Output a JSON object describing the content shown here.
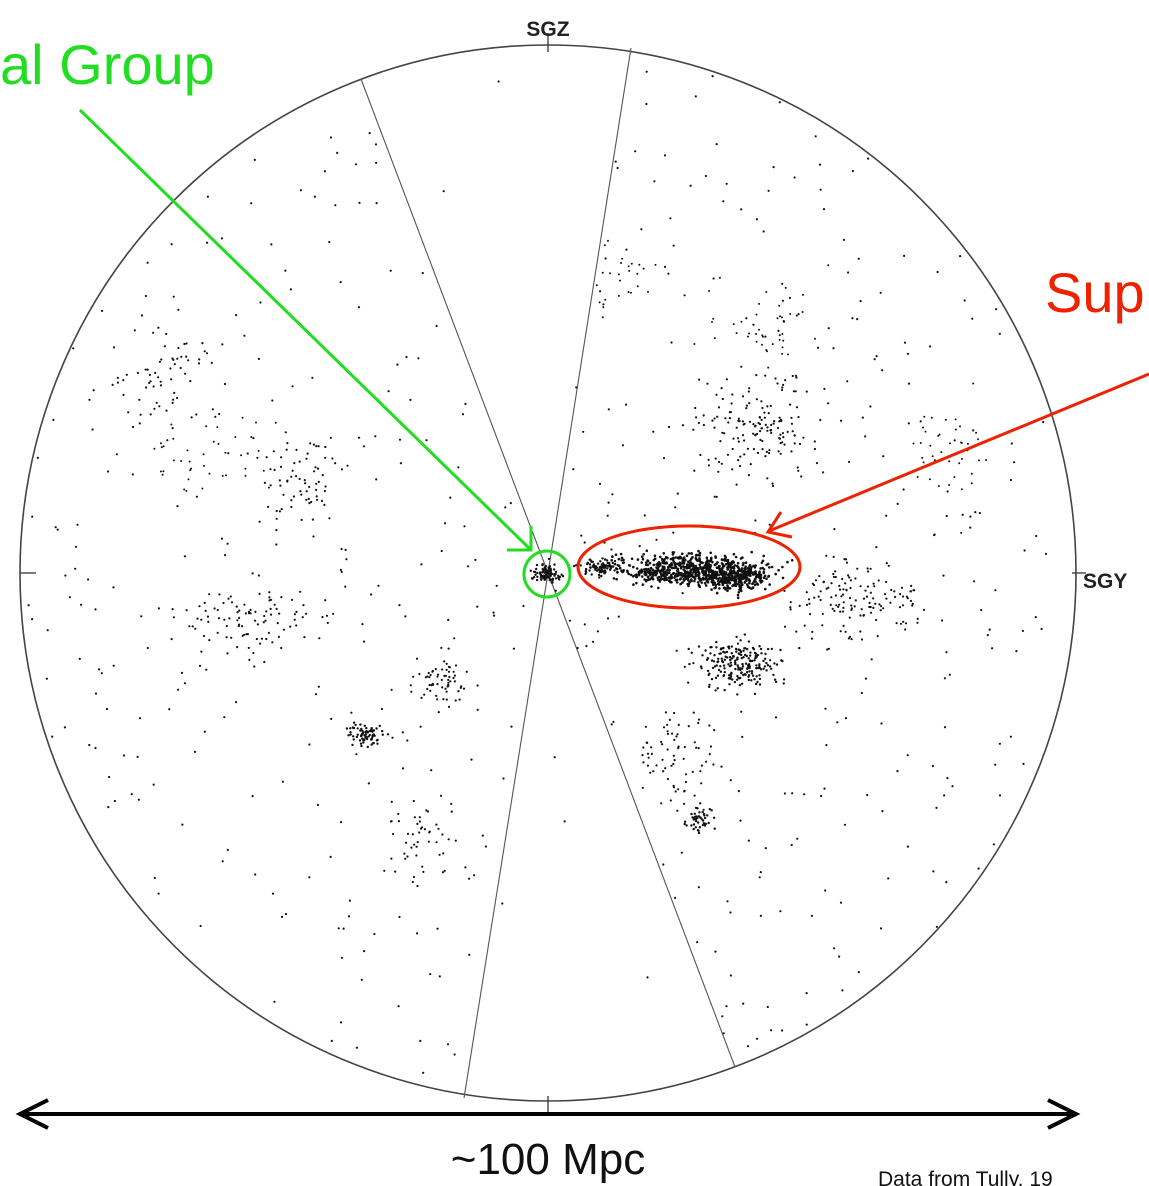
{
  "axes": {
    "top_label": "SGZ",
    "right_label": "SGY"
  },
  "annotations": {
    "local_group": {
      "text": "al Group",
      "color": "#22dd22"
    },
    "supercluster": {
      "text": "Sup",
      "color": "#ee2200"
    }
  },
  "scale_bar": {
    "label": "~100 Mpc"
  },
  "credit": {
    "text": "Data from Tully, 19"
  },
  "colors": {
    "background": "#ffffff",
    "circle": "#444444",
    "wedge_lines": "#555555",
    "points": "#111111",
    "scale_arrow": "#000000"
  }
}
